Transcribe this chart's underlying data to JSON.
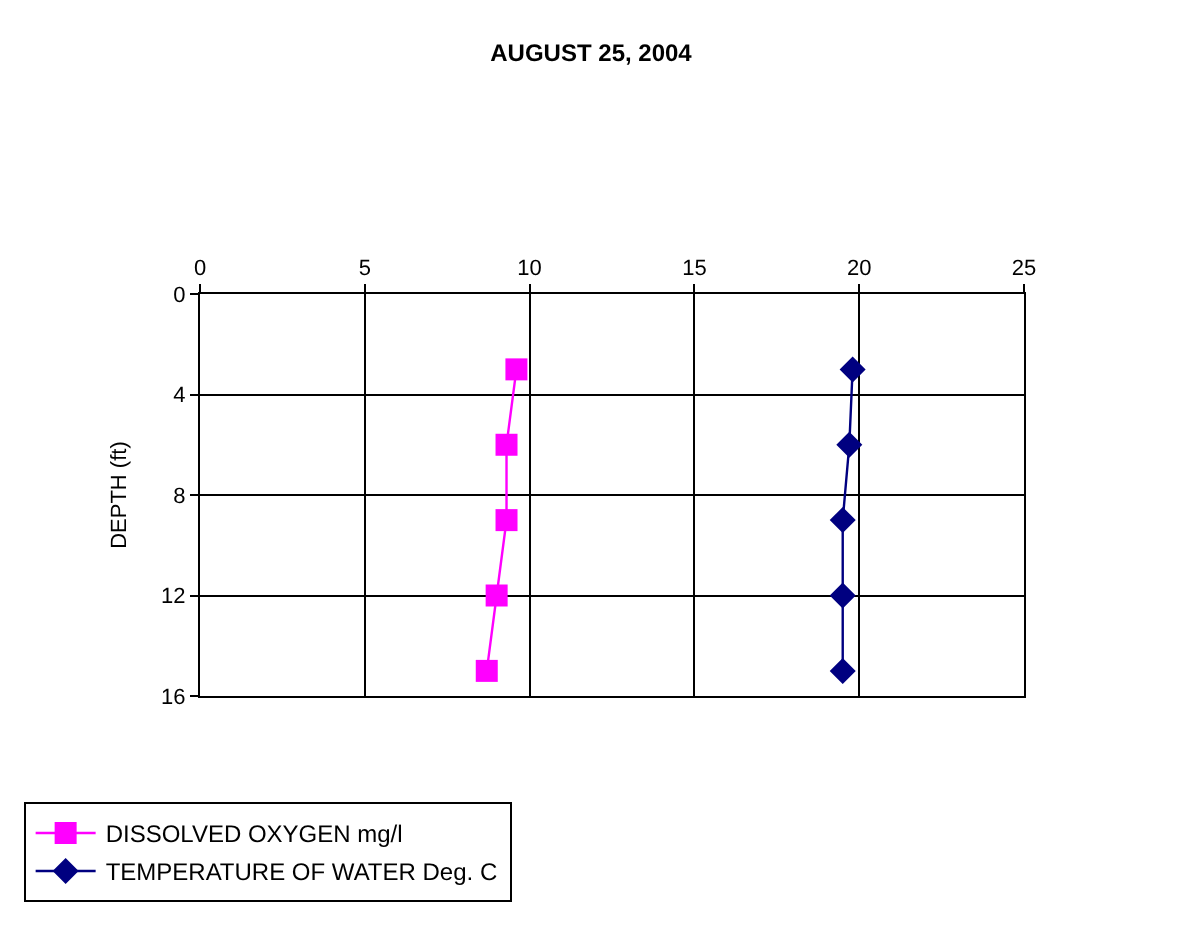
{
  "chart_data": {
    "type": "line",
    "title": "AUGUST 25, 2004",
    "ylabel": "DEPTH (ft)",
    "orientation": "horizontal",
    "x": [
      3,
      6,
      9,
      12,
      15
    ],
    "series": [
      {
        "name": "DISSOLVED OXYGEN mg/l",
        "color": "#ff00ff",
        "marker": "square",
        "values": [
          9.6,
          9.3,
          9.3,
          9.0,
          8.7
        ]
      },
      {
        "name": "TEMPERATURE OF WATER Deg. C",
        "color": "#000080",
        "marker": "diamond",
        "values": [
          19.8,
          19.7,
          19.5,
          19.5,
          19.5
        ]
      }
    ],
    "xlim": [
      0,
      25
    ],
    "xticks": [
      0,
      5,
      10,
      15,
      20,
      25
    ],
    "ylim": [
      16,
      0
    ],
    "yticks": [
      0,
      4,
      8,
      12,
      16
    ],
    "grid": true,
    "legend": "bottom",
    "line_style": "solid"
  }
}
